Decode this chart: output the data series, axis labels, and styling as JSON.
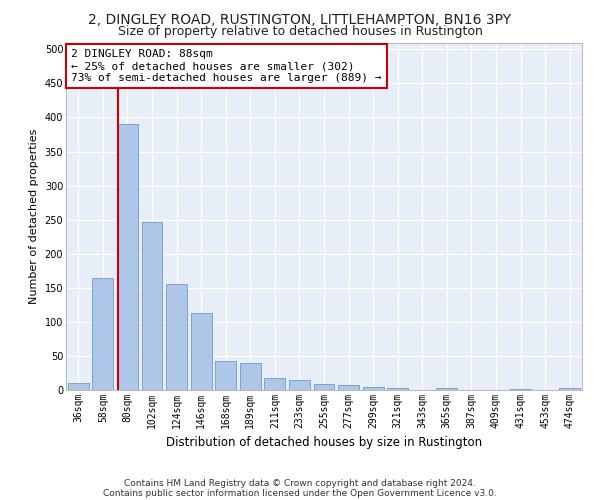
{
  "title1": "2, DINGLEY ROAD, RUSTINGTON, LITTLEHAMPTON, BN16 3PY",
  "title2": "Size of property relative to detached houses in Rustington",
  "xlabel": "Distribution of detached houses by size in Rustington",
  "ylabel": "Number of detached properties",
  "footnote1": "Contains HM Land Registry data © Crown copyright and database right 2024.",
  "footnote2": "Contains public sector information licensed under the Open Government Licence v3.0.",
  "categories": [
    "36sqm",
    "58sqm",
    "80sqm",
    "102sqm",
    "124sqm",
    "146sqm",
    "168sqm",
    "189sqm",
    "211sqm",
    "233sqm",
    "255sqm",
    "277sqm",
    "299sqm",
    "321sqm",
    "343sqm",
    "365sqm",
    "387sqm",
    "409sqm",
    "431sqm",
    "453sqm",
    "474sqm"
  ],
  "values": [
    11,
    165,
    390,
    247,
    156,
    113,
    42,
    40,
    17,
    14,
    9,
    7,
    5,
    3,
    0,
    3,
    0,
    0,
    2,
    0,
    3
  ],
  "bar_color": "#aec6e8",
  "bar_edge_color": "#5a8fc2",
  "annotation_line1": "2 DINGLEY ROAD: 88sqm",
  "annotation_line2": "← 25% of detached houses are smaller (302)",
  "annotation_line3": "73% of semi-detached houses are larger (889) →",
  "annotation_box_color": "#ffffff",
  "annotation_box_edge": "#cc0000",
  "vline_color": "#cc0000",
  "vline_x_index": 2,
  "ylim": [
    0,
    510
  ],
  "yticks": [
    0,
    50,
    100,
    150,
    200,
    250,
    300,
    350,
    400,
    450,
    500
  ],
  "bg_color": "#e8eef7",
  "fig_bg_color": "#ffffff",
  "title1_fontsize": 10,
  "title2_fontsize": 9,
  "xlabel_fontsize": 8.5,
  "ylabel_fontsize": 8,
  "tick_fontsize": 7,
  "annot_fontsize": 8,
  "footnote_fontsize": 6.5,
  "grid_color": "#ffffff",
  "spine_color": "#bbbbbb"
}
